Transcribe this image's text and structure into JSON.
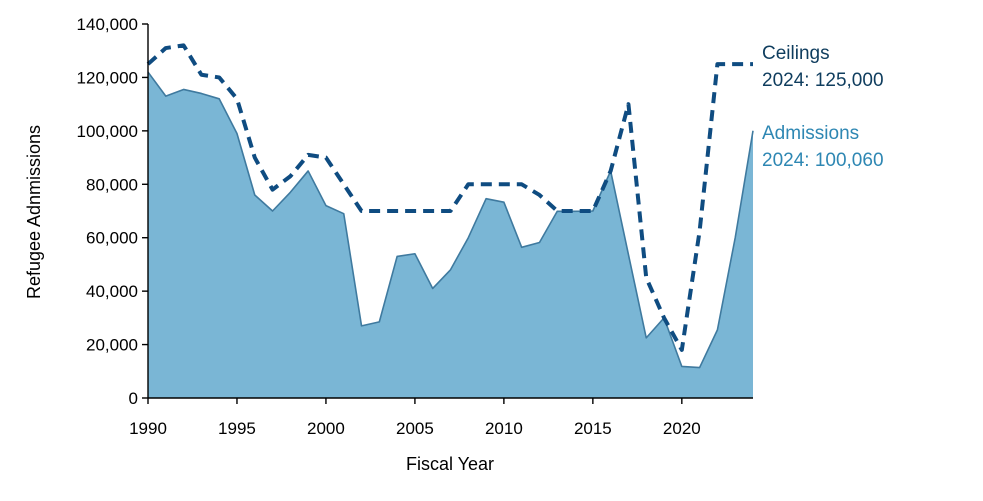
{
  "chart_data": {
    "type": "area",
    "title": "",
    "xlabel": "Fiscal Year",
    "ylabel": "Refugee Adnmissions",
    "xlim": [
      1990,
      2024
    ],
    "ylim": [
      0,
      140000
    ],
    "grid": false,
    "legend": "none",
    "x_ticks": [
      "1990",
      "1995",
      "2000",
      "2005",
      "2010",
      "2015",
      "2020"
    ],
    "x_tick_values": [
      1990,
      1995,
      2000,
      2005,
      2010,
      2015,
      2020
    ],
    "y_ticks": [
      "0",
      "20,000",
      "40,000",
      "60,000",
      "80,000",
      "100,000",
      "120,000",
      "140,000"
    ],
    "y_tick_values": [
      0,
      20000,
      40000,
      60000,
      80000,
      100000,
      120000,
      140000
    ],
    "x": [
      1990,
      1991,
      1992,
      1993,
      1994,
      1995,
      1996,
      1997,
      1998,
      1999,
      2000,
      2001,
      2002,
      2003,
      2004,
      2005,
      2006,
      2007,
      2008,
      2009,
      2010,
      2011,
      2012,
      2013,
      2014,
      2015,
      2016,
      2017,
      2018,
      2019,
      2020,
      2021,
      2022,
      2023,
      2024
    ],
    "series": [
      {
        "key": "admissions",
        "style": "area",
        "color": "#7ab6d5",
        "line_color": "#3f7a9f",
        "values": [
          122000,
          113000,
          115500,
          114000,
          112000,
          99000,
          76000,
          70000,
          77000,
          85000,
          72000,
          69000,
          27000,
          28500,
          53000,
          54000,
          41000,
          48000,
          60000,
          74600,
          73300,
          56400,
          58200,
          69900,
          69900,
          70000,
          85000,
          53700,
          22500,
          30000,
          11800,
          11400,
          25500,
          60000,
          100060
        ]
      },
      {
        "key": "ceilings",
        "style": "dashed-line",
        "color": "#0f4c81",
        "values": [
          125000,
          131000,
          132000,
          121000,
          120000,
          112000,
          90000,
          78000,
          83000,
          91000,
          90000,
          80000,
          70000,
          70000,
          70000,
          70000,
          70000,
          70000,
          80000,
          80000,
          80000,
          80000,
          76000,
          70000,
          70000,
          70000,
          85000,
          110000,
          45000,
          30000,
          18000,
          62500,
          125000,
          125000,
          125000
        ]
      }
    ],
    "annotations": [
      {
        "series": "ceilings",
        "line1": "Ceilings",
        "line2": "2024: 125,000",
        "color": "#0f3d5e"
      },
      {
        "series": "admissions",
        "line1": "Admissions",
        "line2": "2024: 100,060",
        "color": "#2e87b3"
      }
    ]
  }
}
